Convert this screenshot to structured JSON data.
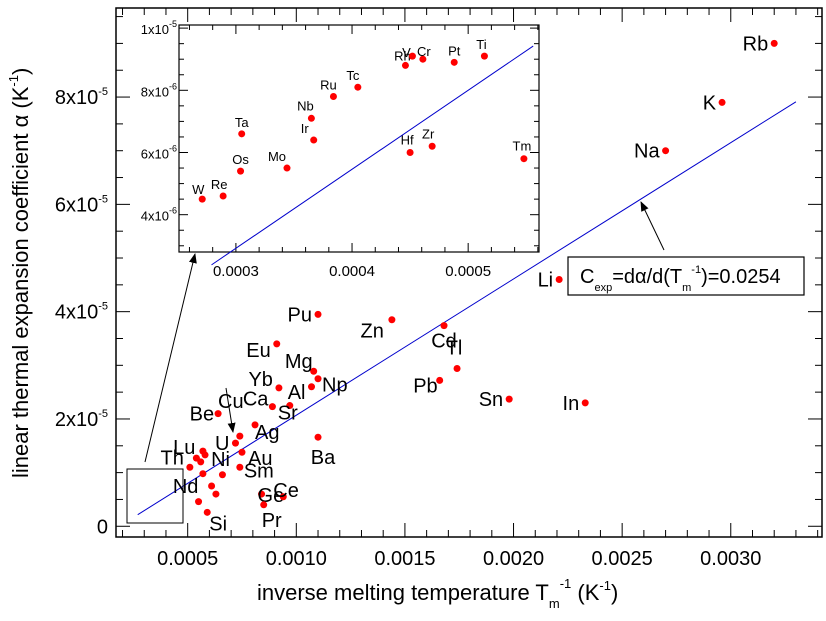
{
  "chart_data": [
    {
      "id": "main",
      "type": "scatter",
      "title": "",
      "xlabel": "inverse melting temperature T_m^-1 (K^-1)",
      "xlabel_parts": {
        "main": "inverse melting temperature T",
        "sub": "m",
        "sup": "-1",
        "tail": " (K",
        "tail_sup": "-1",
        "close": ")"
      },
      "ylabel": "linear thermal expansion coefficient α (K^-1)",
      "ylabel_parts": {
        "main": "linear thermal expansion coefficient α (K",
        "sup": "-1",
        "close": ")"
      },
      "xlim": [
        0.00017,
        0.00342
      ],
      "ylim": [
        -2e-06,
        9.66e-05
      ],
      "x_ticks": [
        {
          "value": 0.0005,
          "label": "0.0005"
        },
        {
          "value": 0.001,
          "label": "0.0010"
        },
        {
          "value": 0.0015,
          "label": "0.0015"
        },
        {
          "value": 0.002,
          "label": "0.0020"
        },
        {
          "value": 0.0025,
          "label": "0.0025"
        },
        {
          "value": 0.003,
          "label": "0.0030"
        }
      ],
      "y_ticks": [
        {
          "value": 0,
          "mant": "0",
          "exp": ""
        },
        {
          "value": 2e-05,
          "mant": "2x10",
          "exp": "-5"
        },
        {
          "value": 4e-05,
          "mant": "4x10",
          "exp": "-5"
        },
        {
          "value": 6e-05,
          "mant": "6x10",
          "exp": "-5"
        },
        {
          "value": 8e-05,
          "mant": "8x10",
          "exp": "-5"
        }
      ],
      "grid": false,
      "fit_line": {
        "slope": 0.0254,
        "intercept": -4.7e-06,
        "x_range": [
          0.00027,
          0.0033
        ],
        "color": "#0000cc"
      },
      "annotation": {
        "text": "C_exp=dα/d(T_m^-1)=0.0254",
        "parts": {
          "c": "C",
          "sub1": "exp",
          "mid": "=dα/d(T",
          "sub2": "m",
          "sup": "-1",
          "end": ")=0.0254"
        }
      },
      "marker_color": "#ff0000",
      "points": [
        {
          "el": "Rb",
          "x": 0.0032,
          "y": 9e-05
        },
        {
          "el": "K",
          "x": 0.00296,
          "y": 7.9e-05
        },
        {
          "el": "Na",
          "x": 0.0027,
          "y": 7e-05
        },
        {
          "el": "Li",
          "x": 0.00221,
          "y": 4.6e-05
        },
        {
          "el": "In",
          "x": 0.00233,
          "y": 2.3e-05
        },
        {
          "el": "Sn",
          "x": 0.00198,
          "y": 2.37e-05
        },
        {
          "el": "Cd",
          "x": 0.00168,
          "y": 3.74e-05
        },
        {
          "el": "Tl",
          "x": 0.00174,
          "y": 2.94e-05
        },
        {
          "el": "Pb",
          "x": 0.00166,
          "y": 2.72e-05
        },
        {
          "el": "Zn",
          "x": 0.00144,
          "y": 3.85e-05
        },
        {
          "el": "Pu",
          "x": 0.0011,
          "y": 3.95e-05
        },
        {
          "el": "Eu",
          "x": 0.00091,
          "y": 3.4e-05
        },
        {
          "el": "Mg",
          "x": 0.00108,
          "y": 2.89e-05
        },
        {
          "el": "Np",
          "x": 0.0011,
          "y": 2.75e-05
        },
        {
          "el": "Al",
          "x": 0.00107,
          "y": 2.6e-05
        },
        {
          "el": "Yb",
          "x": 0.00092,
          "y": 2.58e-05
        },
        {
          "el": "Ca",
          "x": 0.00089,
          "y": 2.23e-05
        },
        {
          "el": "Sr",
          "x": 0.00097,
          "y": 2.25e-05
        },
        {
          "el": "Ba",
          "x": 0.0011,
          "y": 1.66e-05
        },
        {
          "el": "Ag",
          "x": 0.00081,
          "y": 1.89e-05
        },
        {
          "el": "Cu",
          "x": 0.00074,
          "y": 1.68e-05
        },
        {
          "el": "U",
          "x": 0.00072,
          "y": 1.55e-05
        },
        {
          "el": "Be",
          "x": 0.00064,
          "y": 2.1e-05
        },
        {
          "el": "Au",
          "x": 0.00075,
          "y": 1.38e-05
        },
        {
          "el": "Sm",
          "x": 0.00074,
          "y": 1.1e-05
        },
        {
          "el": "Ge",
          "x": 0.00084,
          "y": 6e-06
        },
        {
          "el": "Ce",
          "x": 0.00094,
          "y": 5.5e-06
        },
        {
          "el": "Pr",
          "x": 0.00085,
          "y": 4e-06
        },
        {
          "el": "Nd",
          "x": 0.00066,
          "y": 9.6e-06
        },
        {
          "el": "Si",
          "x": 0.00059,
          "y": 2.6e-06
        },
        {
          "el": "Lu",
          "x": 0.00054,
          "y": 1.27e-05
        },
        {
          "el": "Ni",
          "x": 0.00058,
          "y": 1.33e-05
        },
        {
          "el": "Th",
          "x": 0.00051,
          "y": 1.1e-05
        },
        {
          "el": "",
          "x": 0.00057,
          "y": 1.4e-05
        },
        {
          "el": "",
          "x": 0.00056,
          "y": 1.2e-05
        },
        {
          "el": "",
          "x": 0.00057,
          "y": 9.8e-06
        },
        {
          "el": "",
          "x": 0.00061,
          "y": 7.5e-06
        },
        {
          "el": "",
          "x": 0.00063,
          "y": 6e-06
        },
        {
          "el": "",
          "x": 0.00055,
          "y": 4.6e-06
        }
      ],
      "label_offsets": {}
    },
    {
      "id": "inset",
      "type": "scatter",
      "xlim": [
        0.000251,
        0.000561
      ],
      "ylim": [
        2.8e-06,
        1.01e-05
      ],
      "x_ticks": [
        {
          "value": 0.0003,
          "label": "0.0003"
        },
        {
          "value": 0.0004,
          "label": "0.0004"
        },
        {
          "value": 0.0005,
          "label": "0.0005"
        }
      ],
      "y_ticks": [
        {
          "value": 4e-06,
          "mant": "4x10",
          "exp": "-6"
        },
        {
          "value": 6e-06,
          "mant": "6x10",
          "exp": "-6"
        },
        {
          "value": 8e-06,
          "mant": "8x10",
          "exp": "-6"
        },
        {
          "value": 1e-05,
          "mant": "1x10",
          "exp": "-5"
        }
      ],
      "points": [
        {
          "el": "W",
          "x": 0.000271,
          "y": 4.5e-06
        },
        {
          "el": "Re",
          "x": 0.000289,
          "y": 4.6e-06
        },
        {
          "el": "Os",
          "x": 0.000304,
          "y": 5.4e-06
        },
        {
          "el": "Ta",
          "x": 0.000305,
          "y": 6.6e-06
        },
        {
          "el": "Mo",
          "x": 0.000344,
          "y": 5.5e-06
        },
        {
          "el": "Ir",
          "x": 0.000367,
          "y": 6.4e-06
        },
        {
          "el": "Nb",
          "x": 0.000365,
          "y": 7.1e-06
        },
        {
          "el": "Ru",
          "x": 0.000384,
          "y": 7.8e-06
        },
        {
          "el": "Tc",
          "x": 0.000405,
          "y": 8.1e-06
        },
        {
          "el": "Rh",
          "x": 0.000446,
          "y": 8.8e-06
        },
        {
          "el": "V",
          "x": 0.000452,
          "y": 9.1e-06
        },
        {
          "el": "Cr",
          "x": 0.000461,
          "y": 9e-06
        },
        {
          "el": "Pt",
          "x": 0.000488,
          "y": 8.9e-06
        },
        {
          "el": "Ti",
          "x": 0.000514,
          "y": 9.1e-06
        },
        {
          "el": "Hf",
          "x": 0.00045,
          "y": 6e-06
        },
        {
          "el": "Zr",
          "x": 0.000469,
          "y": 6.2e-06
        },
        {
          "el": "Tm",
          "x": 0.000548,
          "y": 5.8e-06
        }
      ]
    }
  ]
}
